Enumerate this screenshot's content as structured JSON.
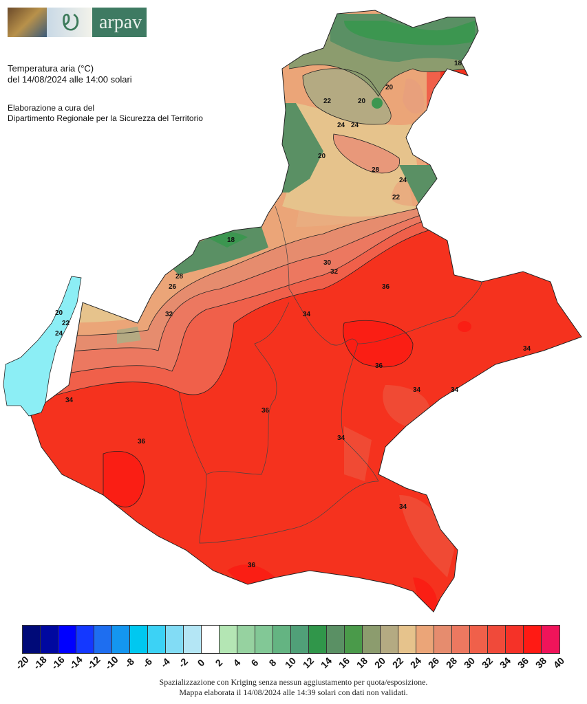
{
  "logo": {
    "text": "arpav"
  },
  "header": {
    "title": "Temperatura aria (°C)",
    "subtitle": "del 14/08/2024 alle 14:00 solari",
    "credit_line1": "Elaborazione a cura del",
    "credit_line2": "Dipartimento Regionale per la Sicurezza del Territorio"
  },
  "legend": {
    "labels": [
      "-20",
      "-18",
      "-16",
      "-14",
      "-12",
      "-10",
      "-8",
      "-6",
      "-4",
      "-2",
      "0",
      "2",
      "4",
      "6",
      "8",
      "10",
      "12",
      "14",
      "16",
      "18",
      "20",
      "22",
      "24",
      "26",
      "28",
      "30",
      "32",
      "34",
      "36",
      "38",
      "40"
    ],
    "colors": [
      "#0a3c8c",
      "#000a78",
      "#0008a0",
      "#0000ff",
      "#1438ff",
      "#1e6ef0",
      "#1496f0",
      "#00c8f0",
      "#3cd2f5",
      "#82dcf5",
      "#b4e6f5",
      "#ffffff",
      "#b4e6b4",
      "#96d2a0",
      "#82c896",
      "#64b482",
      "#50a078",
      "#30964a",
      "#5a9064",
      "#4a9a4a",
      "#8c9c6e",
      "#b4aa82",
      "#e6c38c",
      "#eba578",
      "#e68c6e",
      "#ec7860",
      "#f0604a",
      "#f04a3a",
      "#f53228",
      "#ff1a14",
      "#f0145a",
      "#f0148c"
    ]
  },
  "map": {
    "lake_color": "#8ceef5",
    "contour_labels": [
      "18",
      "20",
      "20",
      "22",
      "24",
      "24",
      "28",
      "24",
      "22",
      "20",
      "18",
      "30",
      "32",
      "34",
      "28",
      "26",
      "24",
      "22",
      "20",
      "32",
      "34",
      "36",
      "34",
      "34",
      "34",
      "36",
      "36",
      "34",
      "34",
      "36",
      "36"
    ]
  },
  "footer": {
    "line1": "Spazializzazione con Kriging senza nessun aggiustamento per quota/esposizione.",
    "line2": "Mappa elaborata il 14/08/2024 alle 14:39 solari con dati non validati."
  }
}
